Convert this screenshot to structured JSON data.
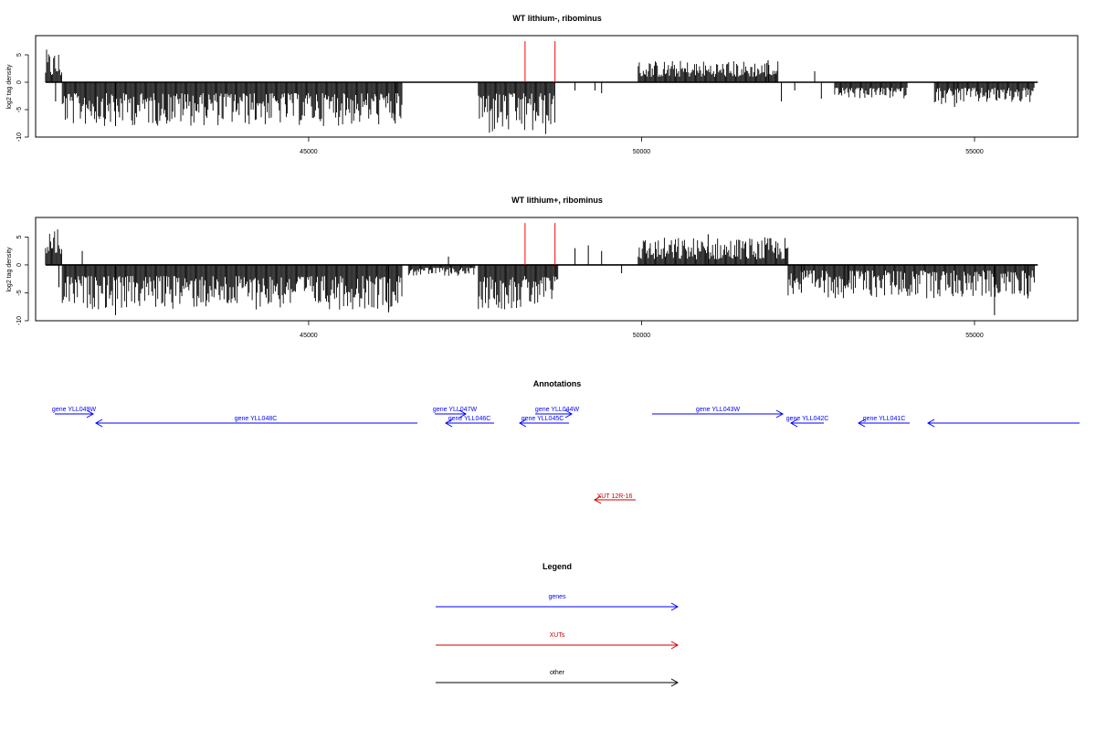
{
  "chart_data": [
    {
      "type": "bar",
      "title": "WT lithium-, ribominus",
      "ylabel": "log2 tag density",
      "xlim": [
        40900,
        56550
      ],
      "ylim": [
        -10,
        8.5
      ],
      "xticks": [
        45000,
        50000,
        55000
      ],
      "yticks": [
        -10,
        -5,
        0,
        5
      ],
      "baseline": 0,
      "bar_color": "#000000",
      "marker_color": "#ff0000",
      "markers": [
        {
          "x": 48250,
          "y": 7.5
        },
        {
          "x": 48700,
          "y": 7.5
        }
      ],
      "bar_segments": [
        {
          "x_start": 41050,
          "x_end": 41300,
          "min": 1,
          "max": 6
        },
        {
          "x_start": 41300,
          "x_end": 46400,
          "min": -8,
          "max": -2
        },
        {
          "x_start": 47550,
          "x_end": 48700,
          "min": -10,
          "max": -2
        },
        {
          "x_start": 49950,
          "x_end": 52050,
          "min": 1,
          "max": 4
        },
        {
          "x_start": 52900,
          "x_end": 54000,
          "min": -3,
          "max": -1
        },
        {
          "x_start": 54400,
          "x_end": 55900,
          "min": -4,
          "max": -1
        }
      ],
      "spikes": [
        {
          "x": 41200,
          "y": -3.5
        },
        {
          "x": 42100,
          "y": -8
        },
        {
          "x": 46300,
          "y": -7.5
        },
        {
          "x": 49000,
          "y": -1.5
        },
        {
          "x": 49300,
          "y": -1.5
        },
        {
          "x": 49400,
          "y": -2
        },
        {
          "x": 51900,
          "y": 4
        },
        {
          "x": 52100,
          "y": -3.5
        },
        {
          "x": 52300,
          "y": -1.5
        },
        {
          "x": 52600,
          "y": 2
        },
        {
          "x": 52700,
          "y": -3
        },
        {
          "x": 54700,
          "y": -4.5
        }
      ]
    },
    {
      "type": "bar",
      "title": "WT lithium+, ribominus",
      "ylabel": "log2 tag density",
      "xlim": [
        40900,
        56550
      ],
      "ylim": [
        -10,
        8.5
      ],
      "xticks": [
        45000,
        50000,
        55000
      ],
      "yticks": [
        -10,
        -5,
        0,
        5
      ],
      "baseline": 0,
      "bar_color": "#000000",
      "marker_color": "#ff0000",
      "markers": [
        {
          "x": 48250,
          "y": 7.5
        },
        {
          "x": 48700,
          "y": 7.5
        }
      ],
      "bar_segments": [
        {
          "x_start": 41050,
          "x_end": 41300,
          "min": 2,
          "max": 7.5
        },
        {
          "x_start": 41300,
          "x_end": 46400,
          "min": -8,
          "max": -2
        },
        {
          "x_start": 46500,
          "x_end": 47500,
          "min": -2,
          "max": -0.5
        },
        {
          "x_start": 47550,
          "x_end": 48750,
          "min": -8,
          "max": -2
        },
        {
          "x_start": 49950,
          "x_end": 52200,
          "min": 1,
          "max": 5
        },
        {
          "x_start": 52200,
          "x_end": 55900,
          "min": -6,
          "max": -1
        }
      ],
      "spikes": [
        {
          "x": 41250,
          "y": -4
        },
        {
          "x": 41600,
          "y": 2.5
        },
        {
          "x": 42100,
          "y": -9
        },
        {
          "x": 46200,
          "y": -8.5
        },
        {
          "x": 47100,
          "y": 1.5
        },
        {
          "x": 49000,
          "y": 3
        },
        {
          "x": 49200,
          "y": 3.5
        },
        {
          "x": 49400,
          "y": 2.5
        },
        {
          "x": 49700,
          "y": -1.5
        },
        {
          "x": 51000,
          "y": 5.5
        },
        {
          "x": 52400,
          "y": -5
        },
        {
          "x": 53100,
          "y": -4
        },
        {
          "x": 55300,
          "y": -9
        },
        {
          "x": 55800,
          "y": -6
        }
      ]
    }
  ],
  "annotations": {
    "title": "Annotations",
    "features": [
      {
        "label": "gene YLL049W",
        "kind": "gene",
        "direction": "right",
        "row": 0
      },
      {
        "label": "gene YLL048C",
        "kind": "gene",
        "direction": "left",
        "row": 1
      },
      {
        "label": "gene YLL047W",
        "kind": "gene",
        "direction": "right",
        "row": 0
      },
      {
        "label": "gene YLL046C",
        "kind": "gene",
        "direction": "left",
        "row": 1
      },
      {
        "label": "gene YLL044W",
        "kind": "gene",
        "direction": "right",
        "row": 0
      },
      {
        "label": "gene YLL045C",
        "kind": "gene",
        "direction": "left",
        "row": 1
      },
      {
        "label": "gene YLL043W",
        "kind": "gene",
        "direction": "right",
        "row": 0
      },
      {
        "label": "gene YLL042C",
        "kind": "gene",
        "direction": "left",
        "row": 1
      },
      {
        "label": "gene YLL041C",
        "kind": "gene",
        "direction": "left",
        "row": 1
      },
      {
        "label": "",
        "kind": "gene",
        "direction": "left",
        "row": 1
      },
      {
        "label": "XUT 12R-16",
        "kind": "xut",
        "direction": "left",
        "row": 2
      }
    ]
  },
  "legend": {
    "title": "Legend",
    "items": [
      {
        "label": "genes",
        "color": "#0000ff"
      },
      {
        "label": "XUTs",
        "color": "#cc0000"
      },
      {
        "label": "other",
        "color": "#000000"
      }
    ]
  },
  "colors": {
    "gene": "#0000ff",
    "xut": "#cc0000",
    "axis": "#000000"
  }
}
